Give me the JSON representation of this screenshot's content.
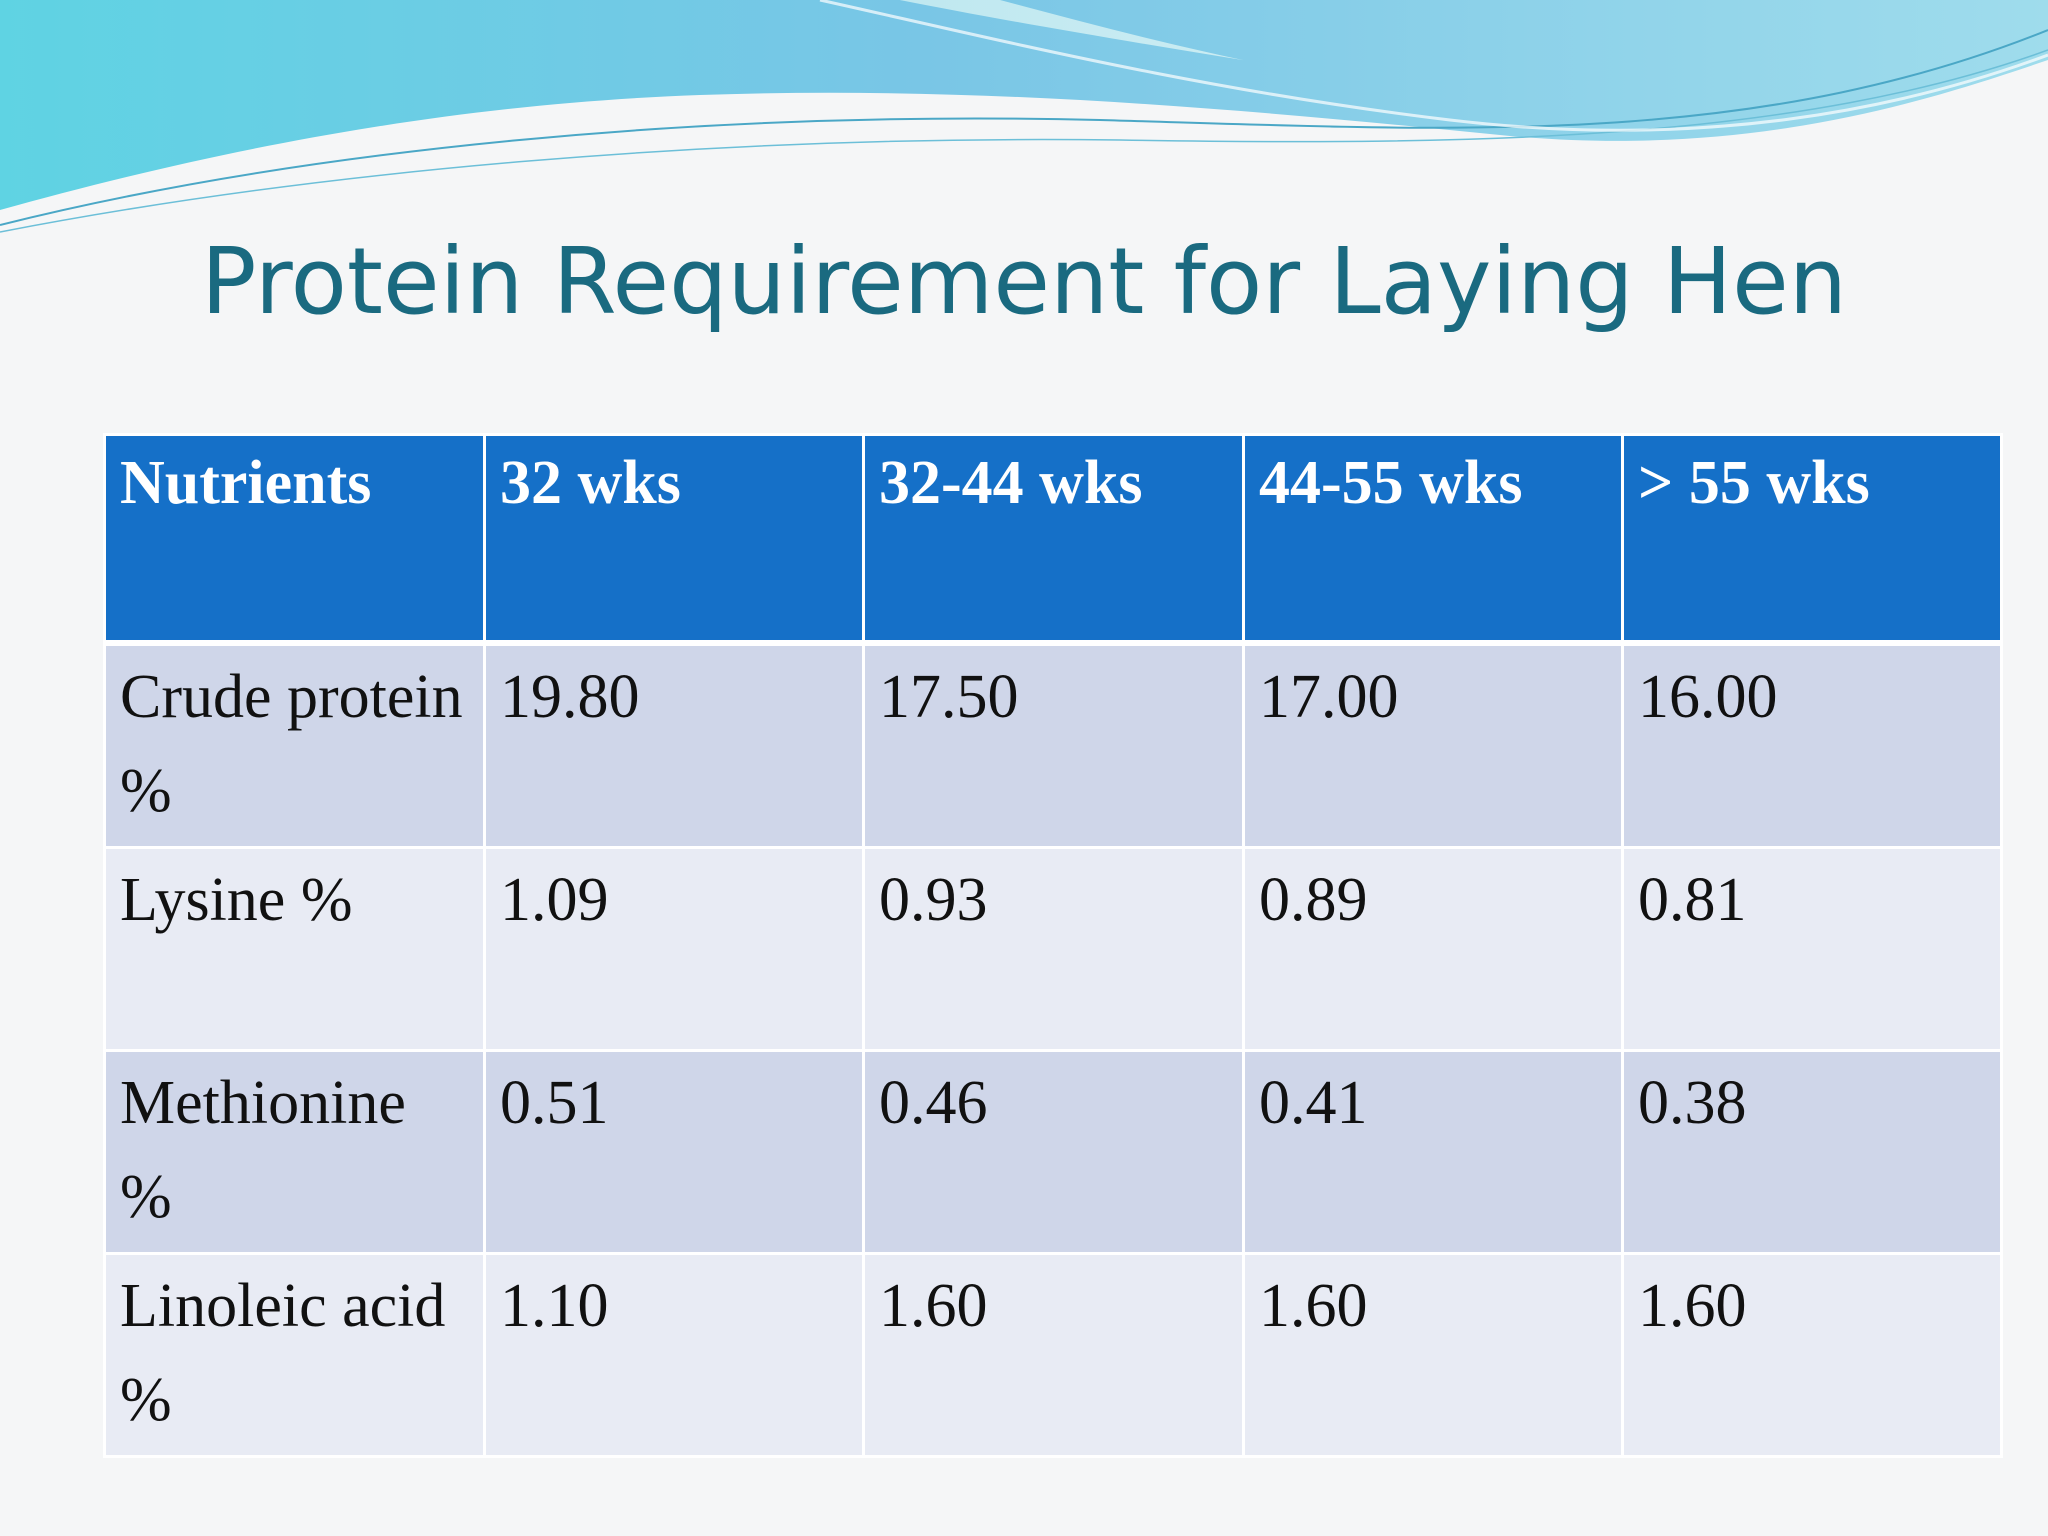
{
  "slide": {
    "title": "Protein Requirement for Laying Hen"
  },
  "table": {
    "headers": [
      "Nutrients",
      "32 wks",
      "32-44 wks",
      "44-55 wks",
      "> 55 wks"
    ],
    "rows": [
      [
        "Crude protein %",
        "19.80",
        "17.50",
        "17.00",
        "16.00"
      ],
      [
        "Lysine %",
        "1.09",
        "0.93",
        "0.89",
        "0.81"
      ],
      [
        "Methionine %",
        "0.51",
        "0.46",
        "0.41",
        "0.38"
      ],
      [
        "Linoleic acid %",
        "1.10",
        "1.60",
        "1.60",
        "1.60"
      ]
    ]
  },
  "colors": {
    "title": "#1a6a80",
    "header_bg": "#1570c8",
    "row_dark": "#cfd6e9",
    "row_light": "#e8ebf4",
    "wave_accent": "#4fc6dc"
  }
}
